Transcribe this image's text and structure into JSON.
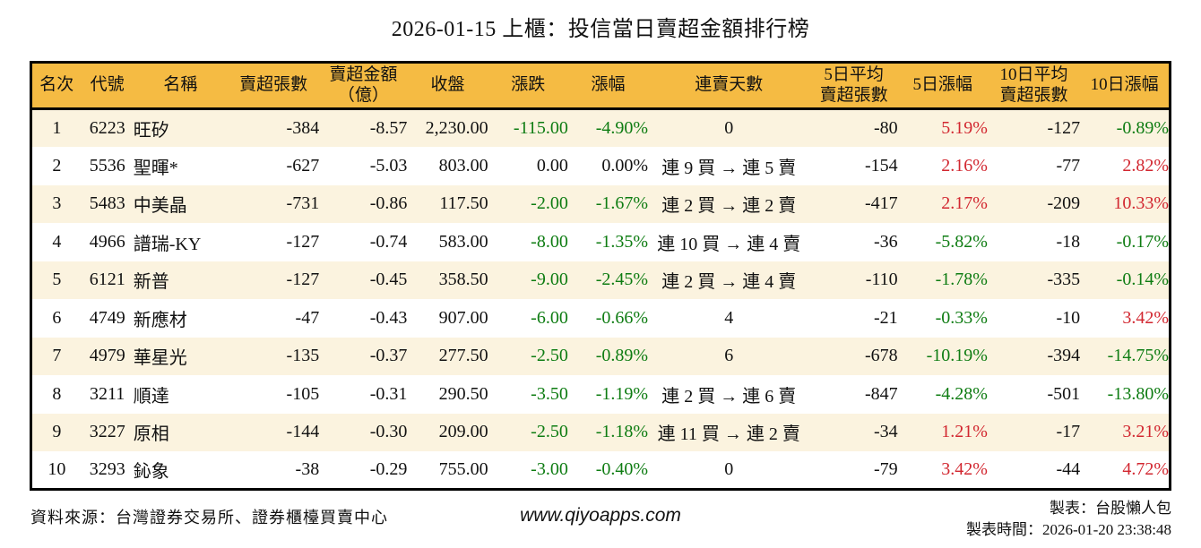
{
  "title": "2026-01-15 上櫃：投信當日賣超金額排行榜",
  "colors": {
    "header_bg": "#F5BB43",
    "row_alt_bg": "#FBF3DF",
    "row_bg": "#FFFFFF",
    "border": "#000000",
    "text": "#111111",
    "down_green": "#0E7C12",
    "up_red": "#D22730"
  },
  "table": {
    "columns": [
      {
        "key": "rank",
        "label": "名次",
        "align": "center",
        "colorize": false
      },
      {
        "key": "code",
        "label": "代號",
        "align": "center",
        "colorize": false
      },
      {
        "key": "name",
        "label": "名稱",
        "align": "left",
        "colorize": false
      },
      {
        "key": "net-sell-lots",
        "label": "賣超張數",
        "align": "right",
        "colorize": false
      },
      {
        "key": "net-sell-amount",
        "label": "賣超金額\n（億）",
        "align": "right",
        "colorize": false
      },
      {
        "key": "close",
        "label": "收盤",
        "align": "right",
        "colorize": false
      },
      {
        "key": "change",
        "label": "漲跌",
        "align": "right",
        "colorize": true
      },
      {
        "key": "change-pct",
        "label": "漲幅",
        "align": "right",
        "colorize": true
      },
      {
        "key": "streak",
        "label": "連賣天數",
        "align": "center",
        "colorize": false
      },
      {
        "key": "avg5-lots",
        "label": "5日平均\n賣超張數",
        "align": "right",
        "colorize": false
      },
      {
        "key": "pct5",
        "label": "5日漲幅",
        "align": "right",
        "colorize": true
      },
      {
        "key": "avg10-lots",
        "label": "10日平均\n賣超張數",
        "align": "right",
        "colorize": false
      },
      {
        "key": "pct10",
        "label": "10日漲幅",
        "align": "right",
        "colorize": true
      }
    ],
    "rows": [
      [
        "1",
        "6223",
        "旺矽",
        "-384",
        "-8.57",
        "2,230.00",
        "-115.00",
        "-4.90%",
        "0",
        "-80",
        "5.19%",
        "-127",
        "-0.89%"
      ],
      [
        "2",
        "5536",
        "聖暉*",
        "-627",
        "-5.03",
        "803.00",
        "0.00",
        "0.00%",
        "連 9 買 → 連 5 賣",
        "-154",
        "2.16%",
        "-77",
        "2.82%"
      ],
      [
        "3",
        "5483",
        "中美晶",
        "-731",
        "-0.86",
        "117.50",
        "-2.00",
        "-1.67%",
        "連 2 買 → 連 2 賣",
        "-417",
        "2.17%",
        "-209",
        "10.33%"
      ],
      [
        "4",
        "4966",
        "譜瑞-KY",
        "-127",
        "-0.74",
        "583.00",
        "-8.00",
        "-1.35%",
        "連 10 買 → 連 4 賣",
        "-36",
        "-5.82%",
        "-18",
        "-0.17%"
      ],
      [
        "5",
        "6121",
        "新普",
        "-127",
        "-0.45",
        "358.50",
        "-9.00",
        "-2.45%",
        "連 2 買 → 連 4 賣",
        "-110",
        "-1.78%",
        "-335",
        "-0.14%"
      ],
      [
        "6",
        "4749",
        "新應材",
        "-47",
        "-0.43",
        "907.00",
        "-6.00",
        "-0.66%",
        "4",
        "-21",
        "-0.33%",
        "-10",
        "3.42%"
      ],
      [
        "7",
        "4979",
        "華星光",
        "-135",
        "-0.37",
        "277.50",
        "-2.50",
        "-0.89%",
        "6",
        "-678",
        "-10.19%",
        "-394",
        "-14.75%"
      ],
      [
        "8",
        "3211",
        "順達",
        "-105",
        "-0.31",
        "290.50",
        "-3.50",
        "-1.19%",
        "連 2 買 → 連 6 賣",
        "-847",
        "-4.28%",
        "-501",
        "-13.80%"
      ],
      [
        "9",
        "3227",
        "原相",
        "-144",
        "-0.30",
        "209.00",
        "-2.50",
        "-1.18%",
        "連 11 買 → 連 2 賣",
        "-34",
        "1.21%",
        "-17",
        "3.21%"
      ],
      [
        "10",
        "3293",
        "鈊象",
        "-38",
        "-0.29",
        "755.00",
        "-3.00",
        "-0.40%",
        "0",
        "-79",
        "3.42%",
        "-44",
        "4.72%"
      ]
    ]
  },
  "footer": {
    "source": "資料來源：台灣證券交易所、證券櫃檯買賣中心",
    "website": "www.qiyoapps.com",
    "author": "製表：台股懶人包",
    "generated": "製表時間：2026-01-20 23:38:48"
  }
}
